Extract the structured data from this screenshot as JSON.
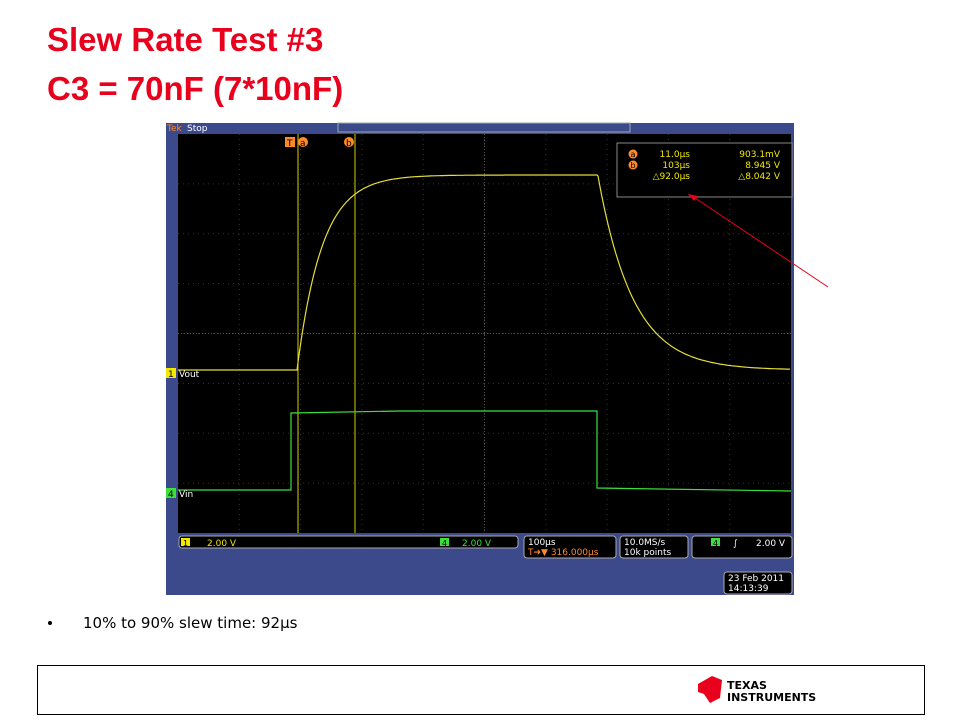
{
  "title": [
    "Slew Rate Test #3",
    "C3 = 70nF (7*10nF)"
  ],
  "scope": {
    "status": [
      "Tek",
      "Stop"
    ],
    "top_markers": [
      "T",
      "a",
      "b"
    ],
    "readout": [
      {
        "cursor": "a",
        "time": "11.0µs",
        "volt": "903.1mV"
      },
      {
        "cursor": "b",
        "time": "103µs",
        "volt": "8.945 V"
      },
      {
        "cursor": "",
        "time": "△92.0µs",
        "volt": "△8.042 V"
      }
    ],
    "channels": [
      {
        "num": "1",
        "name": "Vout"
      },
      {
        "num": "4",
        "name": "Vin"
      }
    ],
    "bottom": {
      "ch1": {
        "num": "1",
        "scale": "2.00 V"
      },
      "ch4": {
        "num": "4",
        "scale": "2.00 V"
      },
      "timebase": "100µs",
      "trigger_pos": "T➔▼ 316.000µs",
      "sample_rate": "10.0MS/s",
      "record": "10k points",
      "trigger": {
        "num": "4",
        "slope": "∫",
        "level": "2.00 V"
      },
      "date": "23 Feb 2011",
      "time": "14:13:39"
    }
  },
  "bullets": [
    "10% to 90% slew time: 92µs"
  ],
  "footer": {
    "logo_line1": "Texas",
    "logo_line2": "Instruments"
  }
}
